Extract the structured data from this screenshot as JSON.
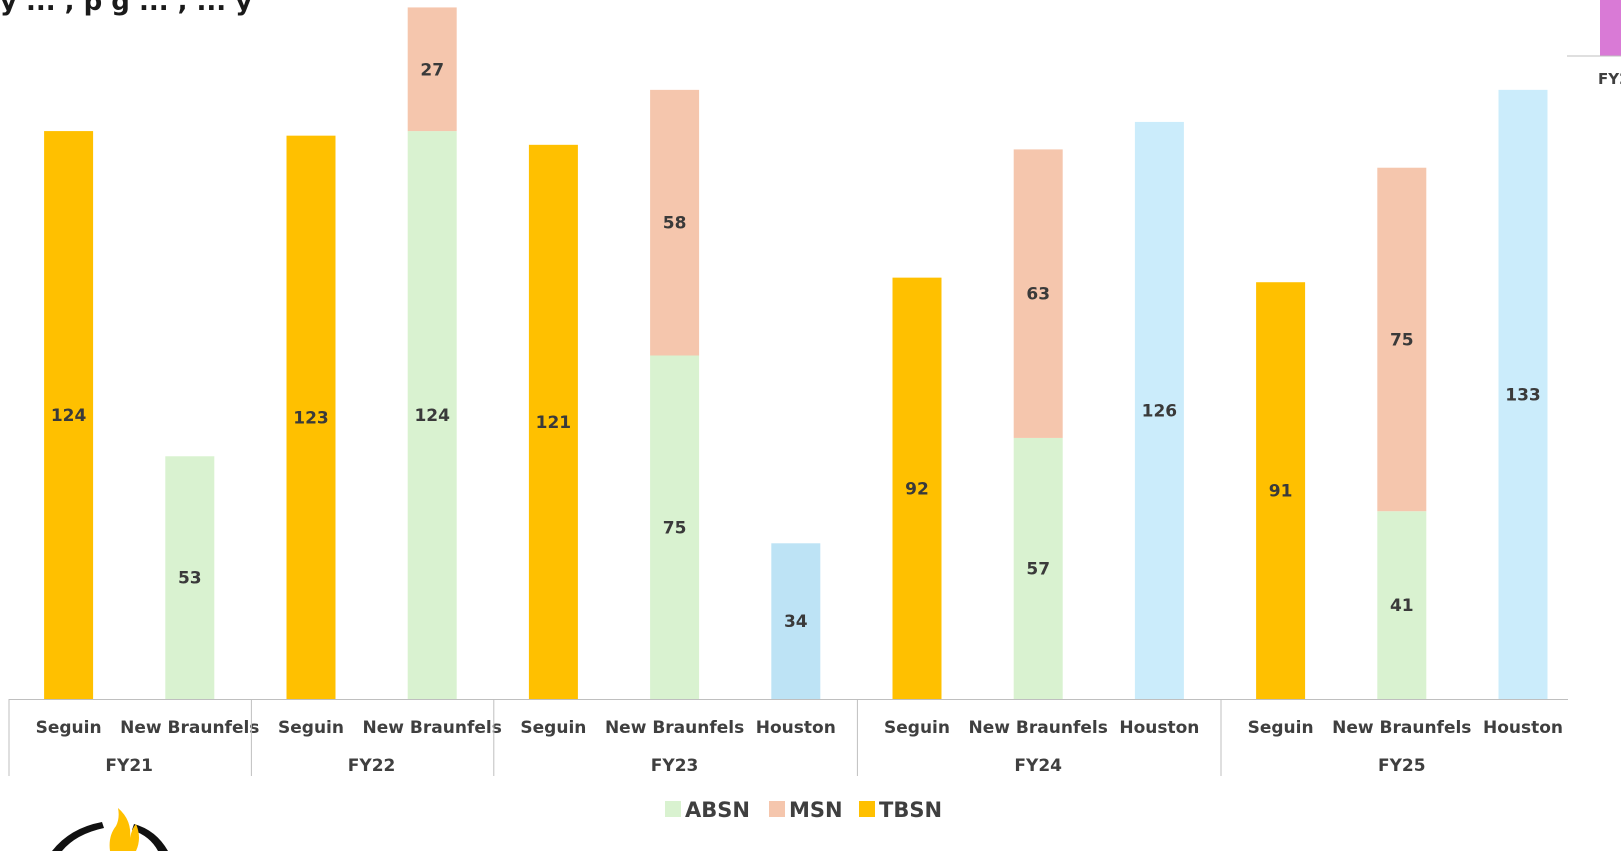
{
  "title_fragment": "y ... , p g ... , ... y",
  "edge_label": "FY2",
  "colors": {
    "TBSN": "#ffc000",
    "ABSN": "#d9f2d0",
    "MSN": "#f5c6ad",
    "Houston_FY23": "#bde3f5",
    "Houston_FY24": "#cbecfb",
    "Houston_FY25": "#cbecfb",
    "edge_bar": "#d97ad6",
    "axis": "#bfbfbf"
  },
  "chart_data": {
    "type": "bar",
    "stacked": true,
    "legend": {
      "position": "bottom",
      "entries": [
        "ABSN",
        "MSN",
        "TBSN"
      ]
    },
    "groups": [
      {
        "label": "FY21",
        "categories": [
          {
            "label": "Seguin",
            "stack": [
              {
                "series": "TBSN",
                "value": 124
              }
            ]
          },
          {
            "label": "New Braunfels",
            "stack": [
              {
                "series": "ABSN",
                "value": 53
              }
            ]
          }
        ]
      },
      {
        "label": "FY22",
        "categories": [
          {
            "label": "Seguin",
            "stack": [
              {
                "series": "TBSN",
                "value": 123
              }
            ]
          },
          {
            "label": "New Braunfels",
            "stack": [
              {
                "series": "ABSN",
                "value": 124
              },
              {
                "series": "MSN",
                "value": 27
              }
            ]
          }
        ]
      },
      {
        "label": "FY23",
        "categories": [
          {
            "label": "Seguin",
            "stack": [
              {
                "series": "TBSN",
                "value": 121
              }
            ]
          },
          {
            "label": "New Braunfels",
            "stack": [
              {
                "series": "ABSN",
                "value": 75
              },
              {
                "series": "MSN",
                "value": 58
              }
            ]
          },
          {
            "label": "Houston",
            "stack": [
              {
                "series": "Houston_FY23",
                "value": 34
              }
            ]
          }
        ]
      },
      {
        "label": "FY24",
        "categories": [
          {
            "label": "Seguin",
            "stack": [
              {
                "series": "TBSN",
                "value": 92
              }
            ]
          },
          {
            "label": "New Braunfels",
            "stack": [
              {
                "series": "ABSN",
                "value": 57
              },
              {
                "series": "MSN",
                "value": 63
              }
            ]
          },
          {
            "label": "Houston",
            "stack": [
              {
                "series": "Houston_FY24",
                "value": 126
              }
            ]
          }
        ]
      },
      {
        "label": "FY25",
        "categories": [
          {
            "label": "Seguin",
            "stack": [
              {
                "series": "TBSN",
                "value": 91
              }
            ]
          },
          {
            "label": "New Braunfels",
            "stack": [
              {
                "series": "ABSN",
                "value": 41
              },
              {
                "series": "MSN",
                "value": 75
              }
            ]
          },
          {
            "label": "Houston",
            "stack": [
              {
                "series": "Houston_FY25",
                "value": 133
              }
            ]
          }
        ]
      }
    ]
  }
}
